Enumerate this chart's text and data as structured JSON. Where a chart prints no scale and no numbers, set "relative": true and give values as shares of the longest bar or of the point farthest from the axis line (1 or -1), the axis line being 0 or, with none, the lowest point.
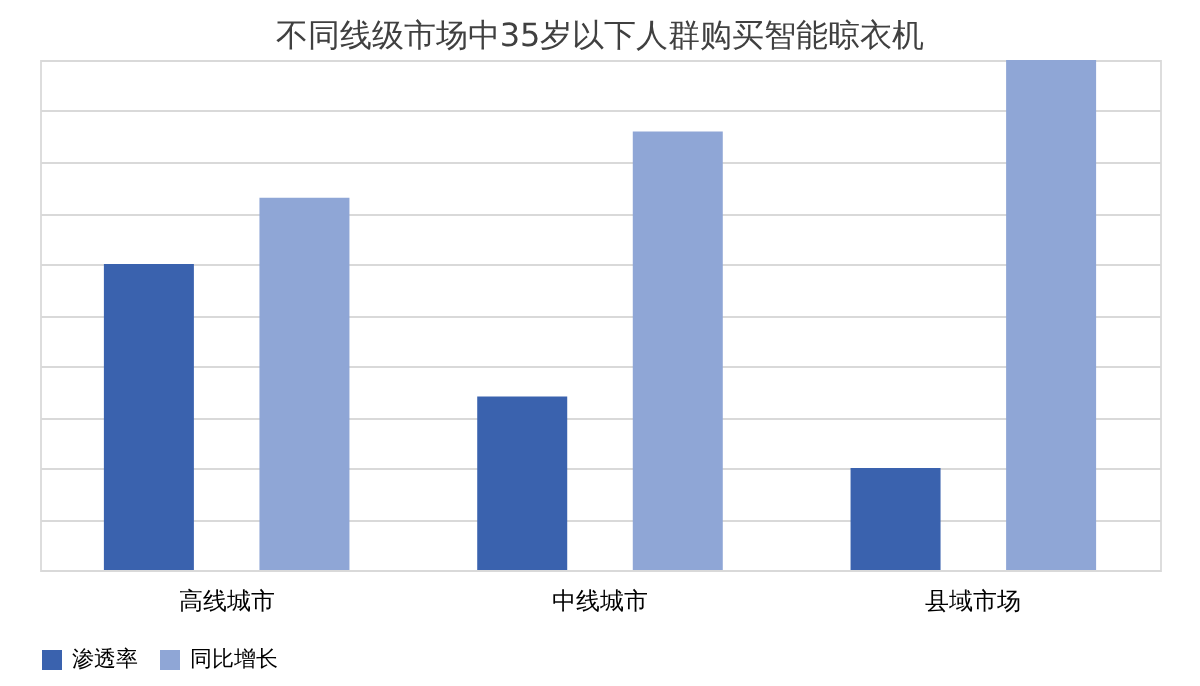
{
  "chart_data": {
    "type": "bar",
    "title": "不同线级市场中35岁以下人群购买智能晾衣机",
    "categories": [
      "高线城市",
      "中线城市",
      "县域市场"
    ],
    "relative": true,
    "grid": "y",
    "legend": "bottom",
    "series": [
      {
        "name": "渗透率",
        "color": "#3a62ae",
        "values": [
          0.6,
          0.34,
          0.2
        ]
      },
      {
        "name": "同比增长",
        "color": "#8fa6d6",
        "values": [
          0.73,
          0.86,
          1
        ]
      }
    ]
  }
}
